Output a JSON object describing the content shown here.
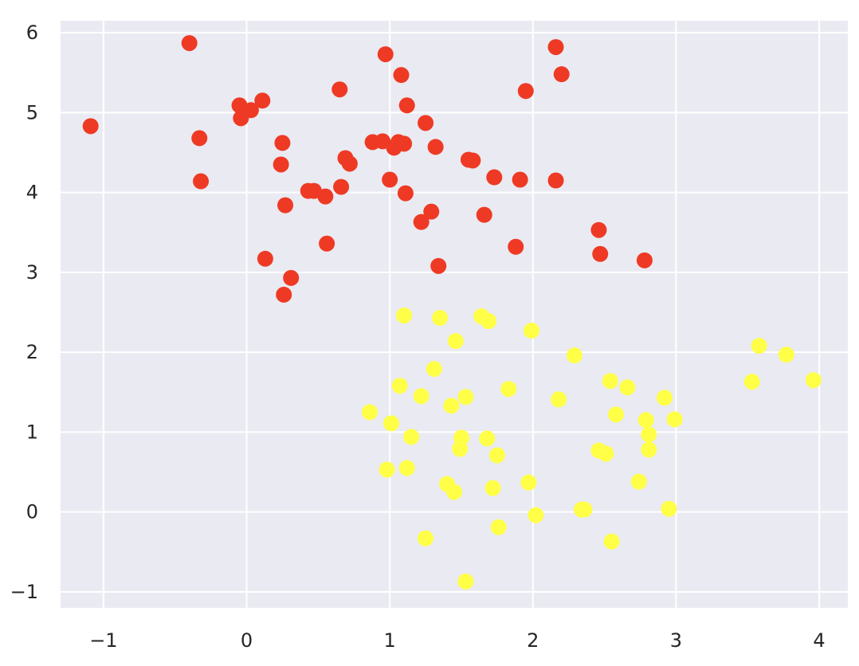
{
  "chart_data": {
    "type": "scatter",
    "title": "",
    "xlabel": "",
    "ylabel": "",
    "xlim": [
      -1.3,
      4.2
    ],
    "ylim": [
      -1.2,
      6.15
    ],
    "grid": true,
    "legend": "none",
    "x_ticks": [
      -1,
      0,
      1,
      2,
      3,
      4
    ],
    "x_tick_labels": [
      "−1",
      "0",
      "1",
      "2",
      "3",
      "4"
    ],
    "y_ticks": [
      -1,
      0,
      1,
      2,
      3,
      4,
      5,
      6
    ],
    "y_tick_labels": [
      "−1",
      "0",
      "1",
      "2",
      "3",
      "4",
      "5",
      "6"
    ],
    "colors": {
      "plot_background": "#eaeaf2",
      "grid": "#ffffff",
      "page_background": "#ffffff"
    },
    "series": [
      {
        "color": "#ee3a24",
        "points": [
          [
            -1.09,
            4.83
          ],
          [
            -0.4,
            5.87
          ],
          [
            -0.33,
            4.68
          ],
          [
            -0.32,
            4.14
          ],
          [
            -0.05,
            5.09
          ],
          [
            -0.04,
            4.93
          ],
          [
            0.03,
            5.03
          ],
          [
            0.11,
            5.15
          ],
          [
            0.13,
            3.17
          ],
          [
            0.24,
            4.35
          ],
          [
            0.25,
            4.62
          ],
          [
            0.26,
            2.72
          ],
          [
            0.27,
            3.84
          ],
          [
            0.31,
            2.93
          ],
          [
            0.43,
            4.02
          ],
          [
            0.47,
            4.02
          ],
          [
            0.55,
            3.95
          ],
          [
            0.56,
            3.36
          ],
          [
            0.65,
            5.29
          ],
          [
            0.66,
            4.07
          ],
          [
            0.69,
            4.43
          ],
          [
            0.72,
            4.36
          ],
          [
            0.88,
            4.63
          ],
          [
            0.95,
            4.64
          ],
          [
            0.97,
            5.73
          ],
          [
            1.0,
            4.16
          ],
          [
            1.03,
            4.56
          ],
          [
            1.06,
            4.63
          ],
          [
            1.08,
            5.47
          ],
          [
            1.1,
            4.61
          ],
          [
            1.11,
            3.99
          ],
          [
            1.12,
            5.09
          ],
          [
            1.22,
            3.63
          ],
          [
            1.25,
            4.87
          ],
          [
            1.29,
            3.76
          ],
          [
            1.32,
            4.57
          ],
          [
            1.34,
            3.08
          ],
          [
            1.55,
            4.41
          ],
          [
            1.58,
            4.4
          ],
          [
            1.66,
            3.72
          ],
          [
            1.73,
            4.19
          ],
          [
            1.88,
            3.32
          ],
          [
            1.91,
            4.16
          ],
          [
            1.95,
            5.27
          ],
          [
            2.16,
            5.82
          ],
          [
            2.16,
            4.15
          ],
          [
            2.2,
            5.48
          ],
          [
            2.46,
            3.53
          ],
          [
            2.47,
            3.23
          ],
          [
            2.78,
            3.15
          ]
        ]
      },
      {
        "color": "#ffff47",
        "points": [
          [
            0.86,
            1.25
          ],
          [
            0.98,
            0.53
          ],
          [
            1.01,
            1.11
          ],
          [
            1.07,
            1.58
          ],
          [
            1.1,
            2.46
          ],
          [
            1.12,
            0.55
          ],
          [
            1.15,
            0.94
          ],
          [
            1.22,
            1.45
          ],
          [
            1.25,
            -0.33
          ],
          [
            1.31,
            1.79
          ],
          [
            1.35,
            2.43
          ],
          [
            1.4,
            0.35
          ],
          [
            1.43,
            1.33
          ],
          [
            1.45,
            0.25
          ],
          [
            1.46,
            2.14
          ],
          [
            1.49,
            0.79
          ],
          [
            1.5,
            0.93
          ],
          [
            1.53,
            1.44
          ],
          [
            1.53,
            -0.87
          ],
          [
            1.64,
            2.45
          ],
          [
            1.68,
            0.92
          ],
          [
            1.69,
            2.39
          ],
          [
            1.72,
            0.3
          ],
          [
            1.75,
            0.71
          ],
          [
            1.76,
            -0.19
          ],
          [
            1.83,
            1.54
          ],
          [
            1.97,
            0.37
          ],
          [
            1.99,
            2.27
          ],
          [
            2.02,
            -0.04
          ],
          [
            2.18,
            1.41
          ],
          [
            2.29,
            1.96
          ],
          [
            2.34,
            0.03
          ],
          [
            2.36,
            0.03
          ],
          [
            2.46,
            0.77
          ],
          [
            2.51,
            0.73
          ],
          [
            2.54,
            1.64
          ],
          [
            2.55,
            -0.37
          ],
          [
            2.58,
            1.22
          ],
          [
            2.66,
            1.56
          ],
          [
            2.74,
            0.38
          ],
          [
            2.79,
            1.15
          ],
          [
            2.81,
            0.97
          ],
          [
            2.81,
            0.78
          ],
          [
            2.92,
            1.43
          ],
          [
            2.95,
            0.04
          ],
          [
            2.99,
            1.16
          ],
          [
            3.53,
            1.63
          ],
          [
            3.58,
            2.08
          ],
          [
            3.77,
            1.97
          ],
          [
            3.96,
            1.65
          ]
        ]
      }
    ]
  }
}
